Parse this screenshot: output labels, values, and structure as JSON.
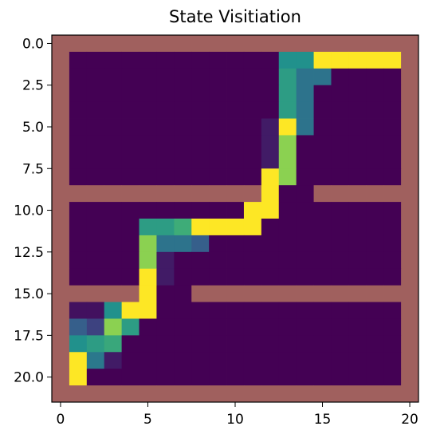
{
  "chart_data": {
    "type": "heatmap",
    "title": "State Visitiation",
    "xlabel": "",
    "ylabel": "",
    "grid": false,
    "xticks": [
      0,
      5,
      10,
      15,
      20
    ],
    "xtick_labels": [
      "0",
      "5",
      "10",
      "15",
      "20"
    ],
    "yticks": [
      0.0,
      2.5,
      5.0,
      7.5,
      10.0,
      12.5,
      15.0,
      17.5,
      20.0
    ],
    "ytick_labels": [
      "0.0",
      "2.5",
      "5.0",
      "7.5",
      "10.0",
      "12.5",
      "15.0",
      "17.5",
      "20.0"
    ],
    "xlim": [
      -0.5,
      20.5
    ],
    "ylim": [
      21.5,
      -0.5
    ],
    "grid_width": 21,
    "grid_height": 22,
    "colormap": "viridis",
    "wall_color": "#a0605e",
    "walls": [
      {
        "row": 0,
        "cols": [
          0,
          20
        ]
      },
      {
        "row": 21,
        "cols": [
          0,
          20
        ]
      },
      {
        "col": 0,
        "rows": [
          0,
          21
        ]
      },
      {
        "col": 20,
        "rows": [
          0,
          21
        ]
      },
      {
        "row": 9,
        "cols": [
          0,
          11
        ]
      },
      {
        "row": 9,
        "cols": [
          15,
          20
        ]
      },
      {
        "row": 15,
        "cols": [
          0,
          4
        ]
      },
      {
        "row": 15,
        "cols": [
          8,
          20
        ]
      }
    ],
    "cells": [
      {
        "row": 1,
        "col": 13,
        "v": 0.5
      },
      {
        "row": 1,
        "col": 14,
        "v": 0.5
      },
      {
        "row": 1,
        "col": 15,
        "v": 1.0
      },
      {
        "row": 1,
        "col": 16,
        "v": 1.0
      },
      {
        "row": 1,
        "col": 17,
        "v": 1.0
      },
      {
        "row": 1,
        "col": 18,
        "v": 1.0
      },
      {
        "row": 1,
        "col": 19,
        "v": 1.0
      },
      {
        "row": 2,
        "col": 13,
        "v": 0.55
      },
      {
        "row": 2,
        "col": 14,
        "v": 0.38
      },
      {
        "row": 2,
        "col": 15,
        "v": 0.38
      },
      {
        "row": 3,
        "col": 13,
        "v": 0.55
      },
      {
        "row": 3,
        "col": 14,
        "v": 0.38
      },
      {
        "row": 4,
        "col": 13,
        "v": 0.55
      },
      {
        "row": 4,
        "col": 14,
        "v": 0.38
      },
      {
        "row": 5,
        "col": 12,
        "v": 0.08
      },
      {
        "row": 5,
        "col": 13,
        "v": 1.0
      },
      {
        "row": 5,
        "col": 14,
        "v": 0.38
      },
      {
        "row": 6,
        "col": 12,
        "v": 0.08
      },
      {
        "row": 6,
        "col": 13,
        "v": 0.82
      },
      {
        "row": 7,
        "col": 12,
        "v": 0.08
      },
      {
        "row": 7,
        "col": 13,
        "v": 0.82
      },
      {
        "row": 8,
        "col": 12,
        "v": 1.0
      },
      {
        "row": 8,
        "col": 13,
        "v": 0.82
      },
      {
        "row": 9,
        "col": 12,
        "v": 1.0
      },
      {
        "row": 10,
        "col": 11,
        "v": 1.0
      },
      {
        "row": 10,
        "col": 12,
        "v": 1.0
      },
      {
        "row": 11,
        "col": 5,
        "v": 0.55
      },
      {
        "row": 11,
        "col": 6,
        "v": 0.55
      },
      {
        "row": 11,
        "col": 7,
        "v": 0.62
      },
      {
        "row": 11,
        "col": 8,
        "v": 1.0
      },
      {
        "row": 11,
        "col": 9,
        "v": 1.0
      },
      {
        "row": 11,
        "col": 10,
        "v": 1.0
      },
      {
        "row": 11,
        "col": 11,
        "v": 1.0
      },
      {
        "row": 12,
        "col": 5,
        "v": 0.82
      },
      {
        "row": 12,
        "col": 6,
        "v": 0.38
      },
      {
        "row": 12,
        "col": 7,
        "v": 0.38
      },
      {
        "row": 12,
        "col": 8,
        "v": 0.3
      },
      {
        "row": 13,
        "col": 5,
        "v": 0.82
      },
      {
        "row": 13,
        "col": 6,
        "v": 0.08
      },
      {
        "row": 14,
        "col": 5,
        "v": 1.0
      },
      {
        "row": 14,
        "col": 6,
        "v": 0.08
      },
      {
        "row": 15,
        "col": 5,
        "v": 1.0
      },
      {
        "row": 16,
        "col": 1,
        "v": 0.05
      },
      {
        "row": 16,
        "col": 2,
        "v": 0.05
      },
      {
        "row": 16,
        "col": 3,
        "v": 0.5
      },
      {
        "row": 16,
        "col": 4,
        "v": 1.0
      },
      {
        "row": 16,
        "col": 5,
        "v": 1.0
      },
      {
        "row": 17,
        "col": 1,
        "v": 0.3
      },
      {
        "row": 17,
        "col": 2,
        "v": 0.2
      },
      {
        "row": 17,
        "col": 3,
        "v": 0.82
      },
      {
        "row": 17,
        "col": 4,
        "v": 0.55
      },
      {
        "row": 18,
        "col": 1,
        "v": 0.5
      },
      {
        "row": 18,
        "col": 2,
        "v": 0.55
      },
      {
        "row": 18,
        "col": 3,
        "v": 0.6
      },
      {
        "row": 19,
        "col": 1,
        "v": 1.0
      },
      {
        "row": 19,
        "col": 2,
        "v": 0.4
      },
      {
        "row": 19,
        "col": 3,
        "v": 0.08
      },
      {
        "row": 20,
        "col": 1,
        "v": 1.0
      }
    ]
  }
}
